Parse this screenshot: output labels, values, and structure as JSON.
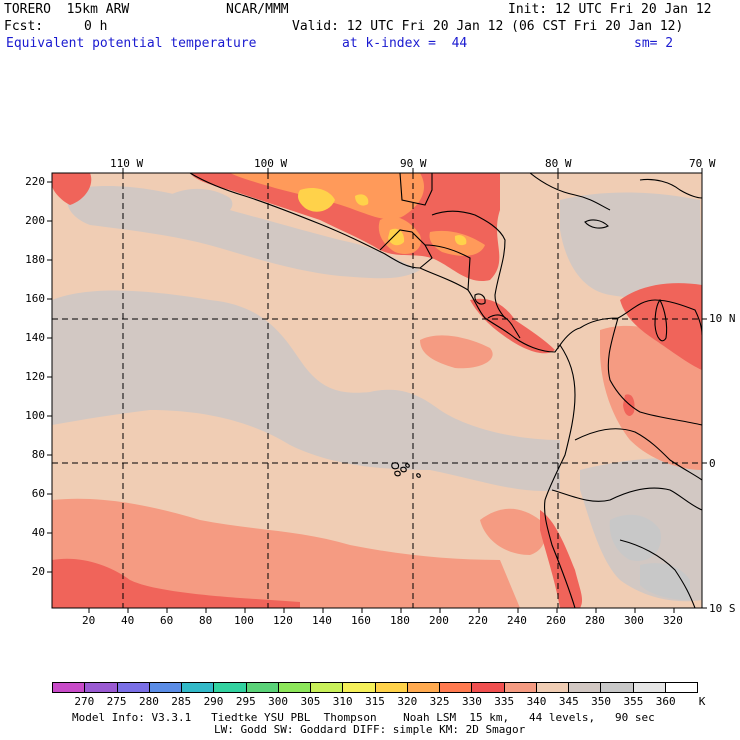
{
  "header": {
    "model": "TORERO  15km ARW",
    "org": "NCAR/MMM",
    "init": "Init: 12 UTC Fri 20 Jan 12",
    "fcst_label": "Fcst:",
    "fcst_value": "0 h",
    "valid": "Valid: 12 UTC Fri 20 Jan 12 (06 CST Fri 20 Jan 12)",
    "field": "Equivalent potential temperature",
    "level": "at k-index =  44",
    "smooth": "sm= 2"
  },
  "map": {
    "lon_labels": [
      "110 W",
      "100 W",
      "90 W",
      "80 W",
      "70 W"
    ],
    "lat_labels": [
      "10 N",
      "0",
      "10 S"
    ],
    "y_ticks": [
      "220",
      "200",
      "180",
      "160",
      "140",
      "120",
      "100",
      "80",
      "60",
      "40",
      "20"
    ],
    "x_ticks": [
      "20",
      "40",
      "60",
      "80",
      "100",
      "120",
      "140",
      "160",
      "180",
      "200",
      "220",
      "240",
      "260",
      "280",
      "300",
      "320"
    ],
    "colors": {
      "c330": "#f0645a",
      "c335": "#f59b82",
      "c340": "#f0cdb4",
      "c345": "#d2c8c3",
      "c350": "#c8c8c8",
      "c325": "#ff9a5a",
      "c320": "#ffd24a",
      "land_outline": "#000000",
      "grid": "#000000"
    }
  },
  "colorbar": {
    "labels": [
      "270",
      "275",
      "280",
      "285",
      "290",
      "295",
      "300",
      "305",
      "310",
      "315",
      "320",
      "325",
      "330",
      "335",
      "340",
      "345",
      "350",
      "355",
      "360"
    ],
    "unit": "K",
    "colors": [
      "#c84bc8",
      "#9a5ad2",
      "#7a6fe6",
      "#5a8ce6",
      "#32b9c8",
      "#32d2a0",
      "#5ad278",
      "#8ce65a",
      "#c8f05a",
      "#f5f05a",
      "#ffd24a",
      "#ffaa50",
      "#ff7a50",
      "#f05050",
      "#f59b82",
      "#f0cdb4",
      "#d2c8c3",
      "#c8c8c8",
      "#e6e6e6",
      "#ffffff"
    ]
  },
  "footer": {
    "line1": "Model Info: V3.3.1   Tiedtke YSU PBL  Thompson    Noah LSM  15 km,   44 levels,   90 sec",
    "line2": "LW: Godd SW: Goddard DIFF: simple KM: 2D Smagor"
  }
}
